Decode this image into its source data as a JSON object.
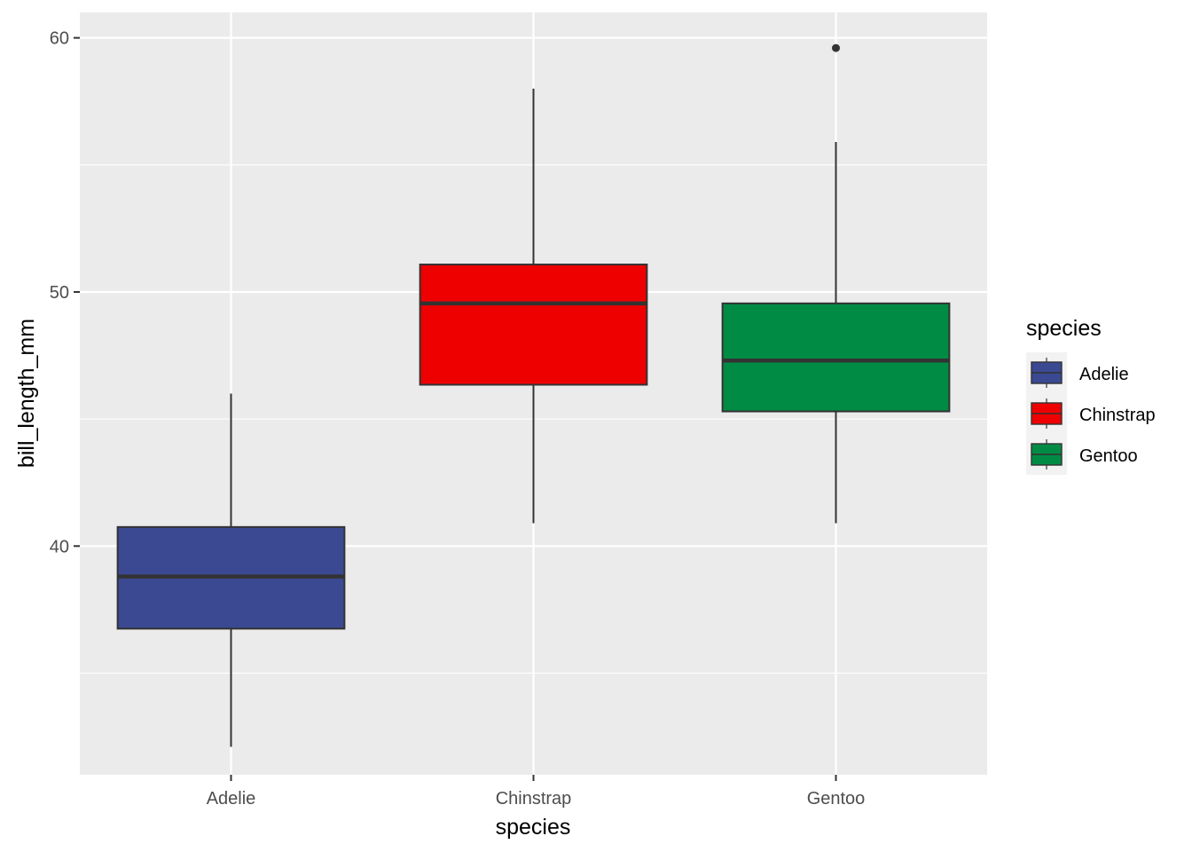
{
  "chart_data": {
    "type": "boxplot",
    "title": "",
    "xlabel": "species",
    "ylabel": "bill_length_mm",
    "ylim": [
      31.0,
      61.0
    ],
    "y_ticks": [
      40,
      50,
      60
    ],
    "y_tick_labels": [
      "40",
      "50",
      "60"
    ],
    "grid": true,
    "legend": {
      "title": "species",
      "position": "right"
    },
    "categories": [
      "Adelie",
      "Chinstrap",
      "Gentoo"
    ],
    "series": [
      {
        "name": "Adelie",
        "color": "#3b4992",
        "min": 32.1,
        "q1": 36.75,
        "median": 38.8,
        "q3": 40.75,
        "max": 46.0,
        "outliers": []
      },
      {
        "name": "Chinstrap",
        "color": "#ee0000",
        "min": 40.9,
        "q1": 46.35,
        "median": 49.55,
        "q3": 51.08,
        "max": 58.0,
        "outliers": []
      },
      {
        "name": "Gentoo",
        "color": "#008b45",
        "min": 40.9,
        "q1": 45.3,
        "median": 47.3,
        "q3": 49.55,
        "max": 55.9,
        "outliers": [
          59.6
        ]
      }
    ]
  }
}
